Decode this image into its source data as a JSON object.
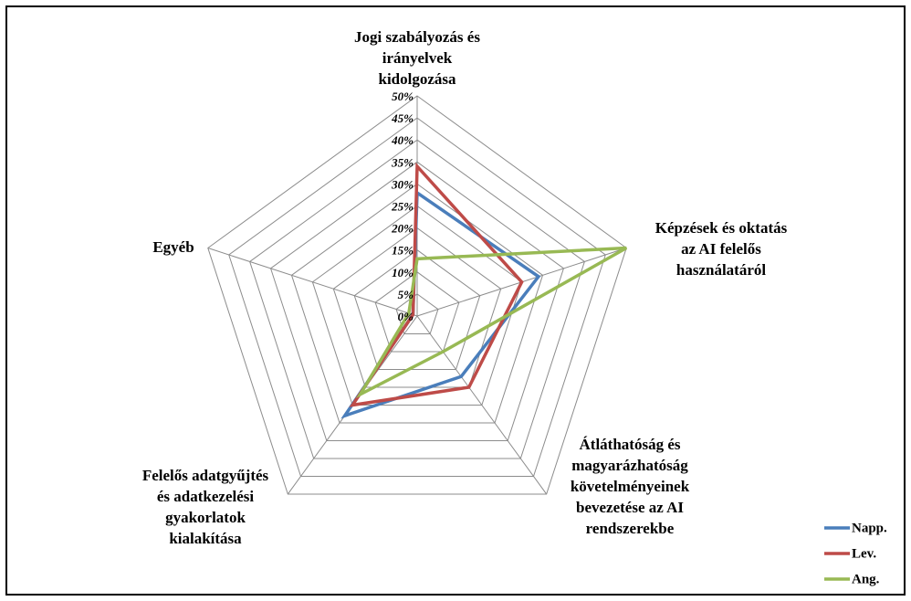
{
  "chart_data": {
    "type": "radar",
    "categories": [
      "Jogi szabályozás és\nirányelvek\nkidolgozása",
      "Képzések és oktatás\naz AI felelős\nhasználatáról",
      "Átláthatóság és\nmagyarázhatóság\nkövetelményeinek\nbevezetése az AI\nrendszerekbe",
      "Felelős adatgyűjtés\nés adatkezelési\ngyakorlatok\nkialakítása",
      "Egyéb"
    ],
    "series": [
      {
        "name": "Napp.",
        "color": "#4a7ebb",
        "values": [
          28,
          29,
          17,
          28,
          1
        ]
      },
      {
        "name": "Lev.",
        "color": "#be4b48",
        "values": [
          34,
          25,
          20,
          25,
          1
        ]
      },
      {
        "name": "Ang.",
        "color": "#98b954",
        "values": [
          13,
          50,
          10,
          22,
          2
        ]
      }
    ],
    "ylim": [
      0,
      50
    ],
    "yticks": [
      {
        "value": 0,
        "label": "0%"
      },
      {
        "value": 5,
        "label": "5%"
      },
      {
        "value": 10,
        "label": "10%"
      },
      {
        "value": 15,
        "label": "15%"
      },
      {
        "value": 20,
        "label": "20%"
      },
      {
        "value": 25,
        "label": "25%"
      },
      {
        "value": 30,
        "label": "30%"
      },
      {
        "value": 35,
        "label": "35%"
      },
      {
        "value": 40,
        "label": "40%"
      },
      {
        "value": 45,
        "label": "45%"
      },
      {
        "value": 50,
        "label": "50%"
      }
    ],
    "legend": "bottom-right"
  }
}
